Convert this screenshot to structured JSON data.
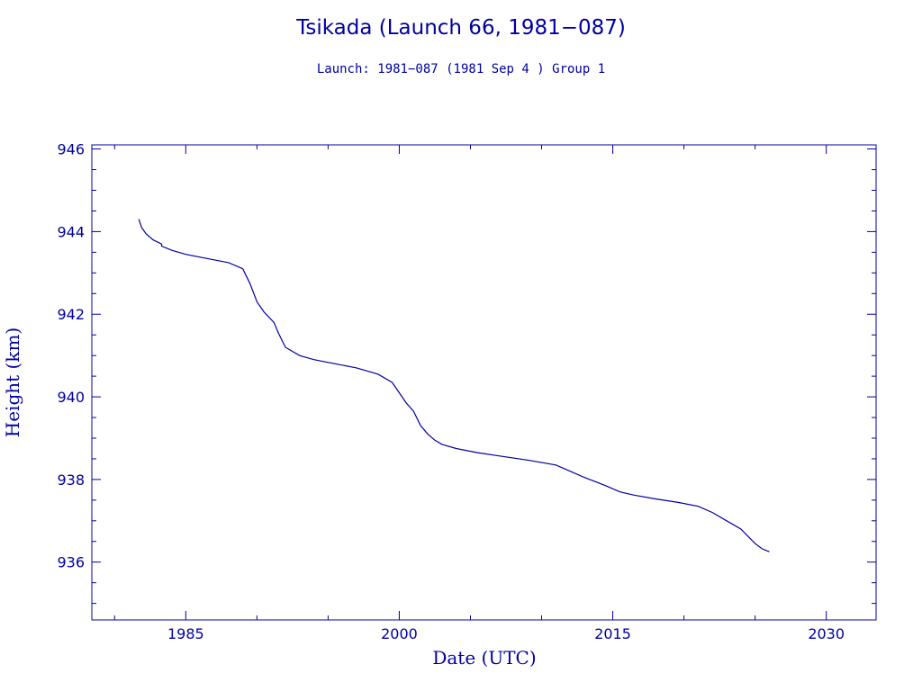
{
  "chart_data": {
    "type": "line",
    "title": "Tsikada (Launch 66, 1981−087)",
    "subtitle": "Launch: 1981−087  (1981 Sep  4 )  Group 1",
    "xlabel": "Date (UTC)",
    "ylabel": "Height (km)",
    "xlim": [
      1978.4,
      2033.5
    ],
    "ylim": [
      934.6,
      946.1
    ],
    "xticks": [
      1985,
      2000,
      2015,
      2030
    ],
    "xtick_labels": [
      "1985",
      "2000",
      "2015",
      "2030"
    ],
    "yticks": [
      936,
      938,
      940,
      942,
      944,
      946
    ],
    "ytick_labels": [
      "936",
      "938",
      "940",
      "942",
      "944",
      "946"
    ],
    "grid": false,
    "color": "#0000a0",
    "series": [
      {
        "x": [
          1981.7,
          1981.9,
          1982.2,
          1982.7,
          1983.3,
          1983.3,
          1984,
          1985,
          1986.5,
          1988,
          1989,
          1989.5,
          1990,
          1990.5,
          1991.2,
          1991.5,
          1992,
          1992.5,
          1993,
          1994,
          1995.5,
          1997,
          1998.5,
          1999.5,
          2000,
          2000.5,
          2001,
          2001.5,
          2002,
          2002.5,
          2003,
          2004,
          2005.5,
          2007,
          2009,
          2011,
          2012,
          2013,
          2014.5,
          2015.5,
          2016.5,
          2018,
          2019.5,
          2021,
          2022,
          2023,
          2024,
          2025,
          2025.5,
          2026
        ],
        "y": [
          944.3,
          944.1,
          943.95,
          943.8,
          943.7,
          943.65,
          943.55,
          943.45,
          943.35,
          943.25,
          943.1,
          942.75,
          942.3,
          942.05,
          941.8,
          941.55,
          941.2,
          941.1,
          941.0,
          940.9,
          940.8,
          940.7,
          940.55,
          940.35,
          940.1,
          939.85,
          939.65,
          939.3,
          939.1,
          938.95,
          938.85,
          938.75,
          938.65,
          938.57,
          938.47,
          938.35,
          938.2,
          938.05,
          937.85,
          937.7,
          937.62,
          937.53,
          937.45,
          937.35,
          937.2,
          937.0,
          936.8,
          936.45,
          936.32,
          936.25
        ]
      }
    ]
  }
}
